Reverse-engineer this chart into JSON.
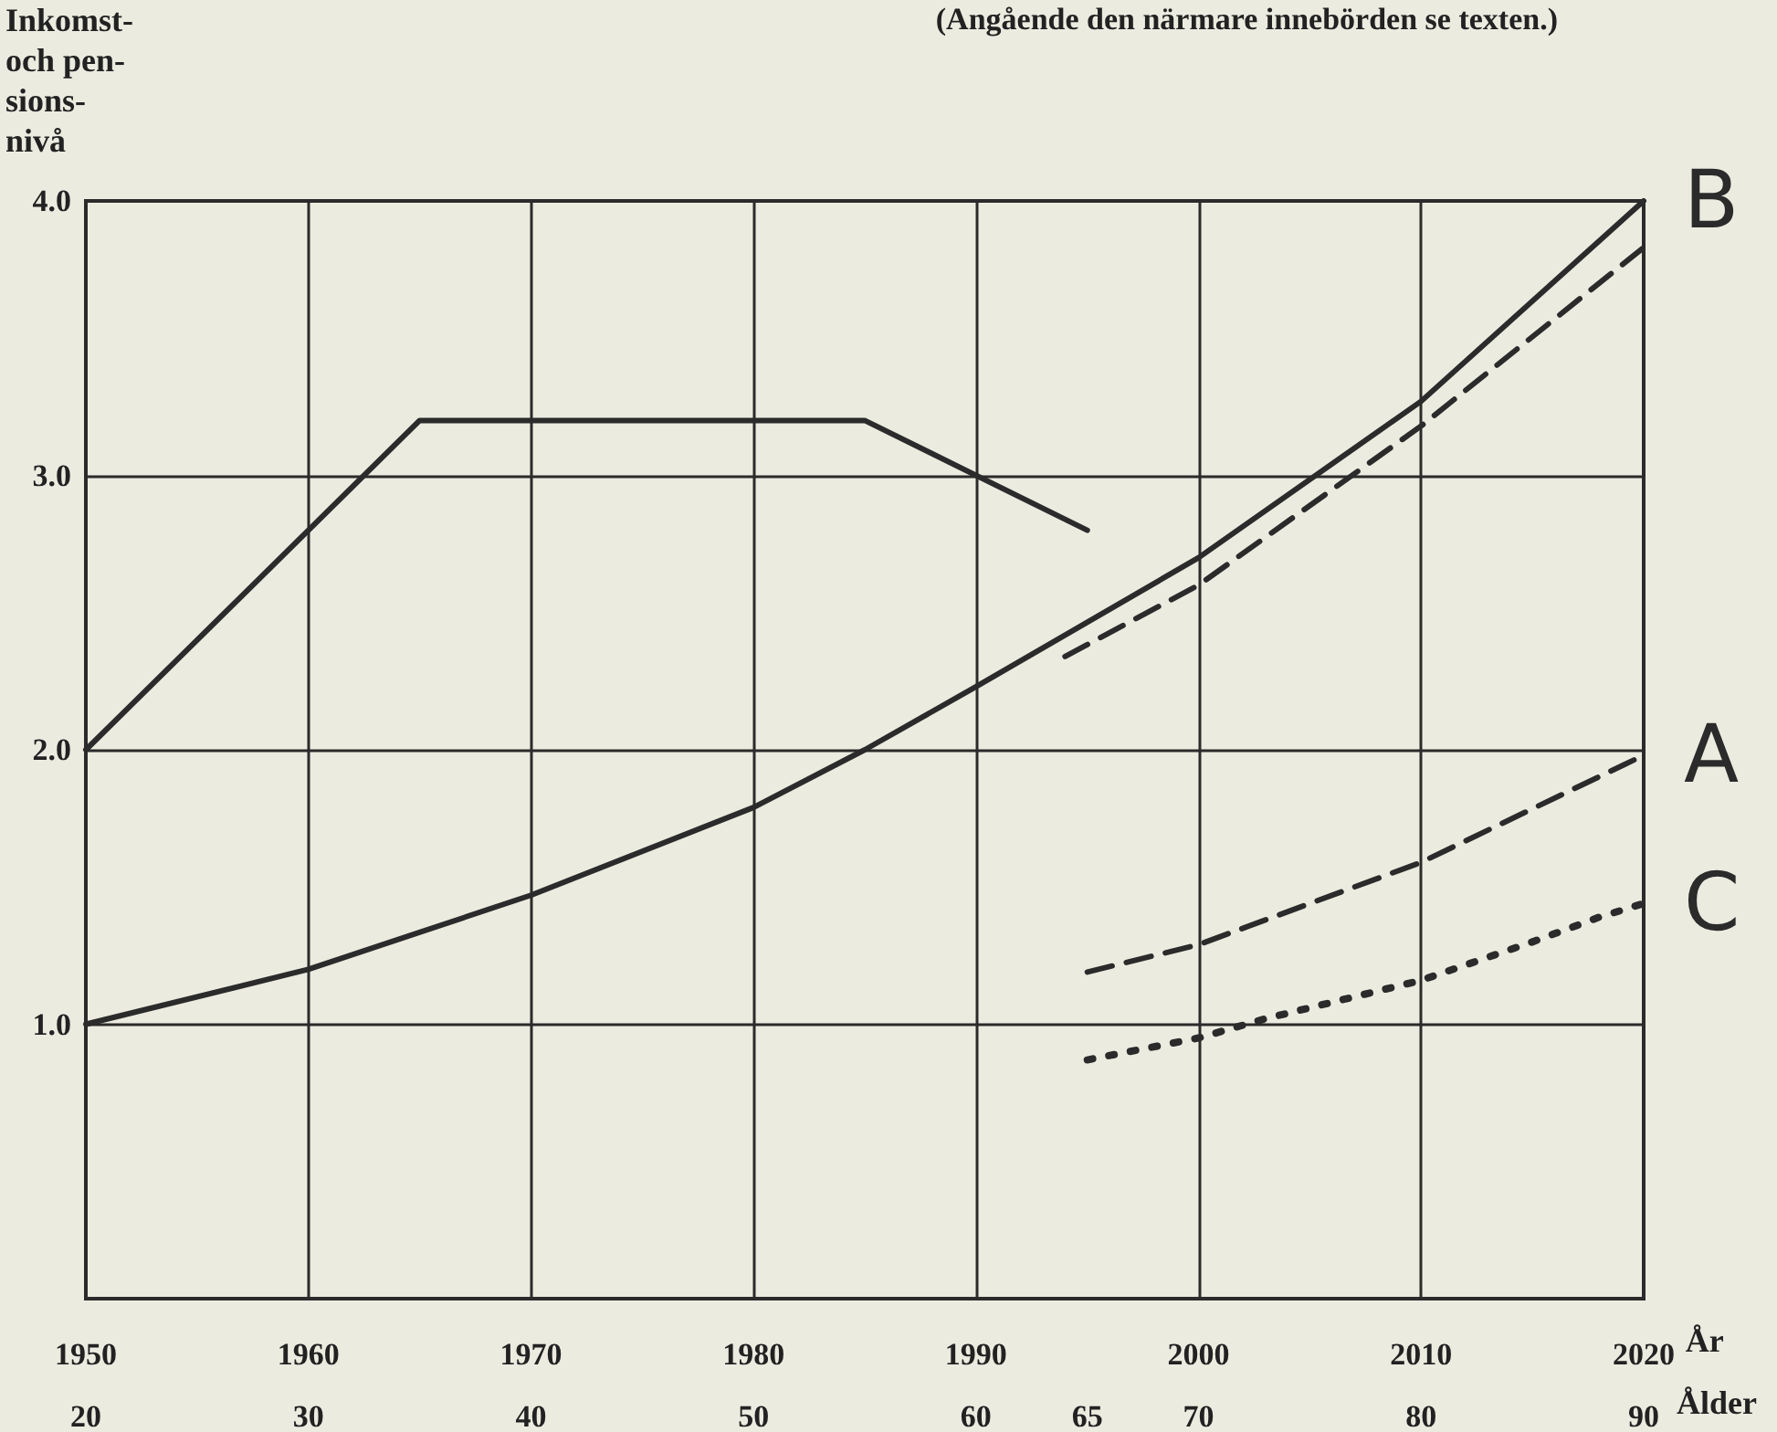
{
  "chart_data": {
    "type": "line",
    "ylabel": "Inkomst-\noch pen-\nsions-\nnivå",
    "xlabel": "År",
    "x2label": "Ålder",
    "annotations": [
      "(Angående den närmare innebörden se texten.)"
    ],
    "xlim": [
      1950,
      2020
    ],
    "xticks": [
      1950,
      1960,
      1970,
      1980,
      1990,
      2000,
      2010,
      2020
    ],
    "x2lim": [
      20,
      90
    ],
    "x2ticks": [
      20,
      30,
      40,
      50,
      60,
      65,
      70,
      80,
      90
    ],
    "ylim": [
      0,
      4
    ],
    "yticks": [
      {
        "value": 1,
        "label": "1.0"
      },
      {
        "value": 2,
        "label": "2.0"
      },
      {
        "value": 3,
        "label": "3.0"
      },
      {
        "value": 4,
        "label": "4.0"
      }
    ],
    "grid": true,
    "legend": false,
    "marker": "none",
    "series": [
      {
        "name": "B",
        "color": "#2b2b2b",
        "line_style": "solid",
        "x": [
          1950,
          1960,
          1970,
          1980,
          1985,
          1990,
          2000,
          2010,
          2020
        ],
        "values": [
          1.0,
          1.2,
          1.47,
          1.79,
          2.0,
          2.23,
          2.7,
          3.27,
          4.0
        ]
      },
      {
        "color": "#2b2b2b",
        "line_style": "dashed",
        "x": [
          1994,
          2000,
          2010,
          2020
        ],
        "values": [
          2.34,
          2.6,
          3.18,
          3.83
        ]
      },
      {
        "color": "#2b2b2b",
        "line_style": "solid",
        "x": [
          1950,
          1965,
          1985,
          1995
        ],
        "values": [
          2.0,
          3.2,
          3.2,
          2.8
        ]
      },
      {
        "name": "A",
        "color": "#2b2b2b",
        "line_style": "dashed",
        "x": [
          1995,
          2000,
          2010,
          2020
        ],
        "values": [
          1.19,
          1.29,
          1.59,
          1.98
        ]
      },
      {
        "name": "C",
        "color": "#2b2b2b",
        "line_style": "dotted",
        "x": [
          1995,
          2000,
          2003,
          2010,
          2015,
          2018,
          2020
        ],
        "values": [
          0.87,
          0.95,
          1.02,
          1.16,
          1.3,
          1.39,
          1.44
        ]
      }
    ]
  }
}
